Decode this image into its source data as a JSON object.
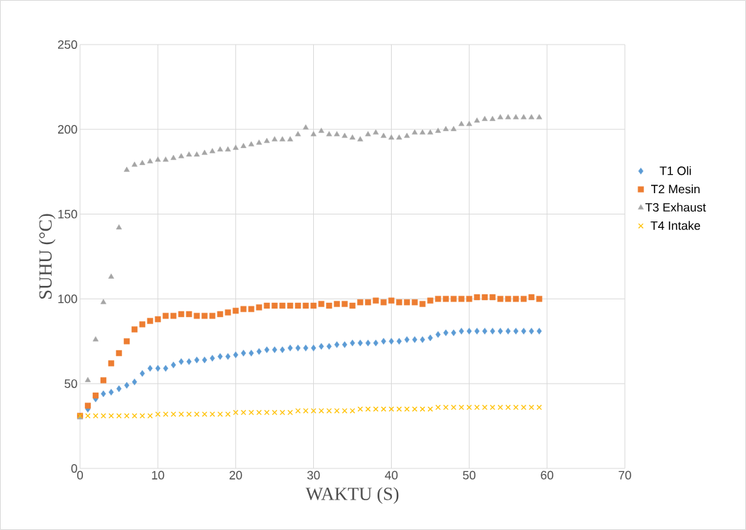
{
  "chart_data": {
    "type": "scatter",
    "xlabel": "WAKTU (S)",
    "ylabel": "SUHU (°C)",
    "x": [
      0,
      1,
      2,
      3,
      4,
      5,
      6,
      7,
      8,
      9,
      10,
      11,
      12,
      13,
      14,
      15,
      16,
      17,
      18,
      19,
      20,
      21,
      22,
      23,
      24,
      25,
      26,
      27,
      28,
      29,
      30,
      31,
      32,
      33,
      34,
      35,
      36,
      37,
      38,
      39,
      40,
      41,
      42,
      43,
      44,
      45,
      46,
      47,
      48,
      49,
      50,
      51,
      52,
      53,
      54,
      55,
      56,
      57,
      58,
      59
    ],
    "series": [
      {
        "name": "T1 Oli",
        "color": "#5b9bd5",
        "marker": "diamond",
        "values": [
          null,
          35,
          41,
          44,
          45,
          47,
          49,
          51,
          56,
          59,
          59,
          59,
          61,
          63,
          63,
          64,
          64,
          65,
          66,
          66,
          67,
          68,
          68,
          69,
          70,
          70,
          70,
          71,
          71,
          71,
          71,
          72,
          72,
          73,
          73,
          74,
          74,
          74,
          74,
          75,
          75,
          75,
          76,
          76,
          76,
          77,
          79,
          80,
          80,
          81,
          81,
          81,
          81,
          81,
          81,
          81,
          81,
          81,
          81,
          81
        ]
      },
      {
        "name": "T2 Mesin",
        "color": "#ed7d31",
        "marker": "square",
        "values": [
          31,
          37,
          43,
          52,
          62,
          68,
          75,
          82,
          85,
          87,
          88,
          90,
          90,
          91,
          91,
          90,
          90,
          90,
          91,
          92,
          93,
          94,
          94,
          95,
          96,
          96,
          96,
          96,
          96,
          96,
          96,
          97,
          96,
          97,
          97,
          96,
          98,
          98,
          99,
          98,
          99,
          98,
          98,
          98,
          97,
          99,
          100,
          100,
          100,
          100,
          100,
          101,
          101,
          101,
          100,
          100,
          100,
          100,
          101,
          100
        ]
      },
      {
        "name": "T3 Exhaust",
        "color": "#a5a5a5",
        "marker": "triangle",
        "values": [
          30,
          52,
          76,
          98,
          113,
          142,
          176,
          179,
          180,
          181,
          182,
          182,
          183,
          184,
          185,
          185,
          186,
          187,
          188,
          188,
          189,
          190,
          191,
          192,
          193,
          194,
          194,
          194,
          197,
          201,
          197,
          199,
          197,
          197,
          196,
          195,
          194,
          197,
          198,
          196,
          195,
          195,
          196,
          198,
          198,
          198,
          199,
          200,
          200,
          203,
          203,
          205,
          206,
          206,
          207,
          207,
          207,
          207,
          207,
          207
        ]
      },
      {
        "name": "T4 Intake",
        "color": "#ffc000",
        "marker": "cross",
        "values": [
          31,
          31,
          31,
          31,
          31,
          31,
          31,
          31,
          31,
          31,
          32,
          32,
          32,
          32,
          32,
          32,
          32,
          32,
          32,
          32,
          33,
          33,
          33,
          33,
          33,
          33,
          33,
          33,
          34,
          34,
          34,
          34,
          34,
          34,
          34,
          34,
          35,
          35,
          35,
          35,
          35,
          35,
          35,
          35,
          35,
          35,
          36,
          36,
          36,
          36,
          36,
          36,
          36,
          36,
          36,
          36,
          36,
          36,
          36,
          36
        ]
      }
    ],
    "xlim": [
      0,
      70
    ],
    "ylim": [
      0,
      250
    ],
    "xticks": [
      0,
      10,
      20,
      30,
      40,
      50,
      60,
      70
    ],
    "yticks": [
      0,
      50,
      100,
      150,
      200,
      250
    ],
    "grid": true,
    "legend": "right"
  }
}
